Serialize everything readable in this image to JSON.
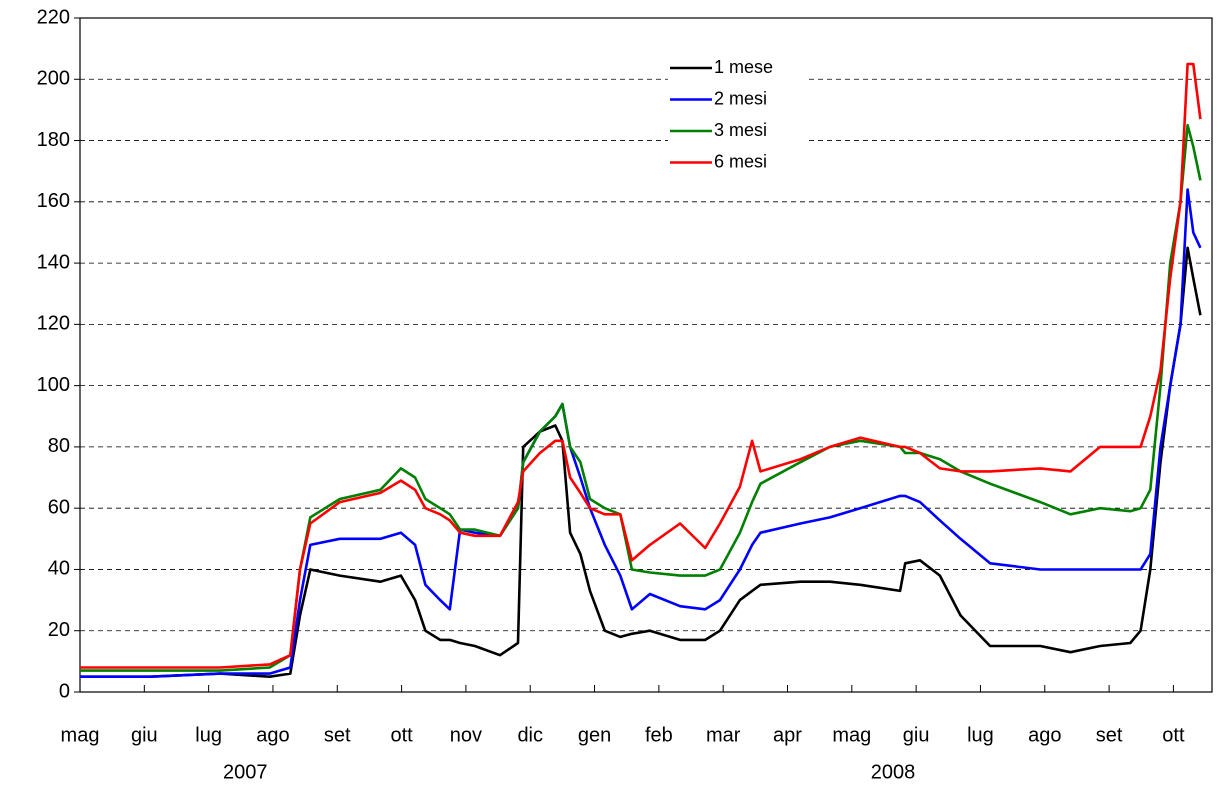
{
  "chart_data": {
    "type": "line",
    "x": [
      0,
      1.09,
      2.18,
      2.95,
      3.27,
      3.42,
      3.58,
      4.04,
      4.67,
      4.99,
      5.21,
      5.37,
      5.6,
      5.75,
      5.91,
      6.14,
      6.53,
      6.81,
      6.89,
      7.15,
      7.39,
      7.5,
      7.62,
      7.78,
      7.93,
      8.16,
      8.4,
      8.58,
      8.86,
      9.33,
      9.72,
      9.95,
      10.26,
      10.45,
      10.58,
      11.2,
      11.66,
      12.13,
      12.75,
      12.83,
      13.06,
      13.37,
      13.69,
      14.15,
      14.93,
      15.4,
      15.86,
      16.33,
      16.49,
      16.64,
      16.8,
      16.95,
      17.11,
      17.22,
      17.31,
      17.42
    ],
    "series": [
      {
        "name": "1 mese",
        "color": "#000000",
        "values": [
          5,
          5,
          6,
          5,
          6,
          25,
          40,
          38,
          36,
          38,
          30,
          20,
          17,
          17,
          16,
          15,
          12,
          16,
          80,
          85,
          87,
          82,
          52,
          45,
          33,
          20,
          18,
          19,
          20,
          17,
          17,
          20,
          30,
          33,
          35,
          36,
          36,
          35,
          33,
          42,
          43,
          38,
          25,
          15,
          15,
          13,
          15,
          16,
          20,
          40,
          75,
          100,
          120,
          145,
          135,
          123
        ]
      },
      {
        "name": "2 mesi",
        "color": "#0000ff",
        "values": [
          5,
          5,
          6,
          6,
          8,
          30,
          48,
          50,
          50,
          52,
          48,
          35,
          30,
          27,
          53,
          52,
          51,
          60,
          75,
          85,
          90,
          94,
          80,
          70,
          60,
          48,
          38,
          27,
          32,
          28,
          27,
          30,
          40,
          48,
          52,
          55,
          57,
          60,
          64,
          64,
          62,
          56,
          50,
          42,
          40,
          40,
          40,
          40,
          40,
          45,
          80,
          100,
          120,
          164,
          150,
          145
        ]
      },
      {
        "name": "3 mesi",
        "color": "#008000",
        "values": [
          7,
          7,
          7,
          8,
          12,
          40,
          57,
          63,
          66,
          73,
          70,
          63,
          60,
          58,
          53,
          53,
          51,
          60,
          75,
          85,
          90,
          94,
          80,
          75,
          63,
          60,
          58,
          40,
          39,
          38,
          38,
          40,
          52,
          62,
          68,
          75,
          80,
          82,
          80,
          78,
          78,
          76,
          72,
          68,
          62,
          58,
          60,
          59,
          60,
          66,
          100,
          140,
          160,
          185,
          178,
          167
        ]
      },
      {
        "name": "6 mesi",
        "color": "#ff0000",
        "values": [
          8,
          8,
          8,
          9,
          12,
          40,
          55,
          62,
          65,
          69,
          66,
          60,
          58,
          56,
          52,
          51,
          51,
          62,
          72,
          78,
          82,
          82,
          70,
          65,
          60,
          58,
          58,
          43,
          48,
          55,
          47,
          55,
          67,
          82,
          72,
          76,
          80,
          83,
          80,
          80,
          78,
          73,
          72,
          72,
          73,
          72,
          80,
          80,
          80,
          90,
          105,
          135,
          160,
          205,
          205,
          187
        ]
      }
    ],
    "xlim": [
      0,
      17.6
    ],
    "xticks": [
      {
        "value": 0,
        "label": "mag"
      },
      {
        "value": 1,
        "label": "giu"
      },
      {
        "value": 2,
        "label": "lug"
      },
      {
        "value": 3,
        "label": "ago"
      },
      {
        "value": 4,
        "label": "set"
      },
      {
        "value": 5,
        "label": "ott"
      },
      {
        "value": 6,
        "label": "nov"
      },
      {
        "value": 7,
        "label": "dic"
      },
      {
        "value": 8,
        "label": "gen"
      },
      {
        "value": 9,
        "label": "feb"
      },
      {
        "value": 10,
        "label": "mar"
      },
      {
        "value": 11,
        "label": "apr"
      },
      {
        "value": 12,
        "label": "mag"
      },
      {
        "value": 13,
        "label": "giu"
      },
      {
        "value": 14,
        "label": "lug"
      },
      {
        "value": 15,
        "label": "ago"
      },
      {
        "value": 16,
        "label": "set"
      },
      {
        "value": 17,
        "label": "ott"
      }
    ],
    "x_group_labels": [
      {
        "value": 2.57,
        "label": "2007"
      },
      {
        "value": 12.64,
        "label": "2008"
      }
    ],
    "ylim": [
      0,
      220
    ],
    "yticks": [
      0,
      20,
      40,
      60,
      80,
      100,
      120,
      140,
      160,
      180,
      200,
      220
    ],
    "grid": true,
    "legend": "upper center"
  }
}
